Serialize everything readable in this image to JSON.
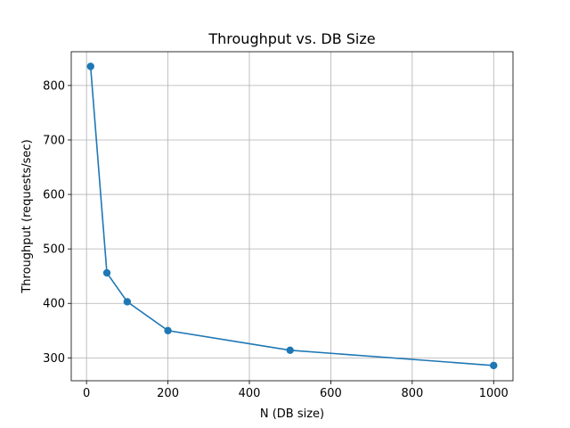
{
  "chart_data": {
    "type": "line",
    "title": "Throughput vs. DB Size",
    "xlabel": "N (DB size)",
    "ylabel": "Throughput (requests/sec)",
    "xlim": [
      -37.5,
      1047.5
    ],
    "ylim": [
      258,
      862
    ],
    "xticks": [
      0,
      200,
      400,
      600,
      800,
      1000
    ],
    "yticks": [
      300,
      400,
      500,
      600,
      700,
      800
    ],
    "grid": true,
    "series": [
      {
        "color": "#1f77b4",
        "marker": "circle",
        "x": [
          10,
          50,
          100,
          200,
          500,
          1000
        ],
        "y": [
          835,
          456,
          403,
          350,
          314,
          286
        ]
      }
    ]
  }
}
